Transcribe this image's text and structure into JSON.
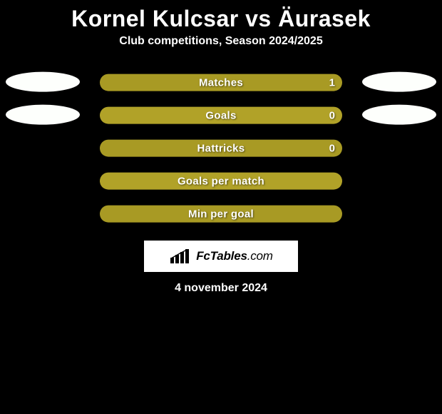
{
  "background_color": "#000000",
  "text_color": "#ffffff",
  "title": "Kornel Kulcsar vs Äurasek",
  "title_fontsize": 32,
  "subtitle": "Club competitions, Season 2024/2025",
  "subtitle_fontsize": 16,
  "ellipse_color": "#fdfffc",
  "bar_color": "#a89a24",
  "bar_color_alt": "#b1a228",
  "logo_box_bg": "#ffffff",
  "logo_text_color": "#000000",
  "logo_name": "FcTables",
  "logo_tld": ".com",
  "date": "4 november 2024",
  "stats": [
    {
      "label": "Matches",
      "value": "1",
      "show_ellipses": true,
      "show_value": true
    },
    {
      "label": "Goals",
      "value": "0",
      "show_ellipses": true,
      "show_value": true
    },
    {
      "label": "Hattricks",
      "value": "0",
      "show_ellipses": false,
      "show_value": true
    },
    {
      "label": "Goals per match",
      "value": "",
      "show_ellipses": false,
      "show_value": false
    },
    {
      "label": "Min per goal",
      "value": "",
      "show_ellipses": false,
      "show_value": false
    }
  ]
}
